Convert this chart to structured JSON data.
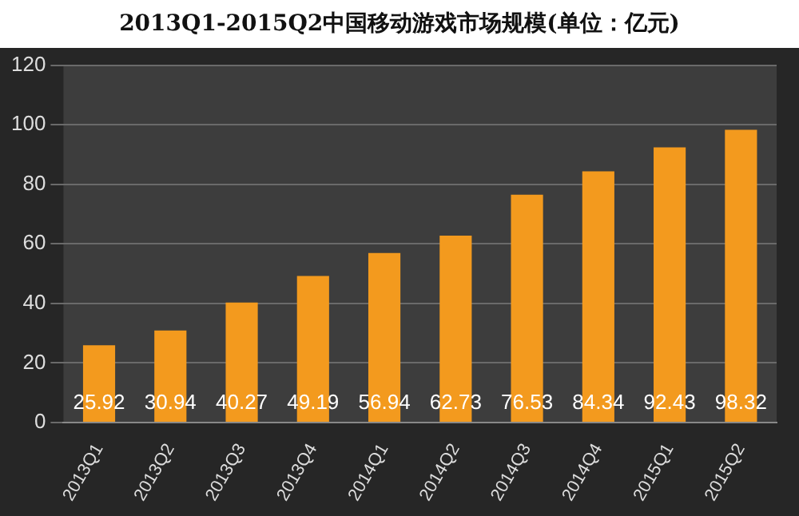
{
  "chart_data": {
    "type": "bar",
    "title": "2013Q1-2015Q2中国移动游戏市场规模(单位：亿元)",
    "categories": [
      "2013Q1",
      "2013Q2",
      "2013Q3",
      "2013Q4",
      "2014Q1",
      "2014Q2",
      "2014Q3",
      "2014Q4",
      "2015Q1",
      "2015Q2"
    ],
    "values": [
      25.92,
      30.94,
      40.27,
      49.19,
      56.94,
      62.73,
      76.53,
      84.34,
      92.43,
      98.32
    ],
    "color": "#f39a1e",
    "ylim": [
      0,
      120
    ],
    "yticks": [
      0,
      20,
      40,
      60,
      80,
      100,
      120
    ],
    "grid": "y",
    "data_labels": true
  }
}
